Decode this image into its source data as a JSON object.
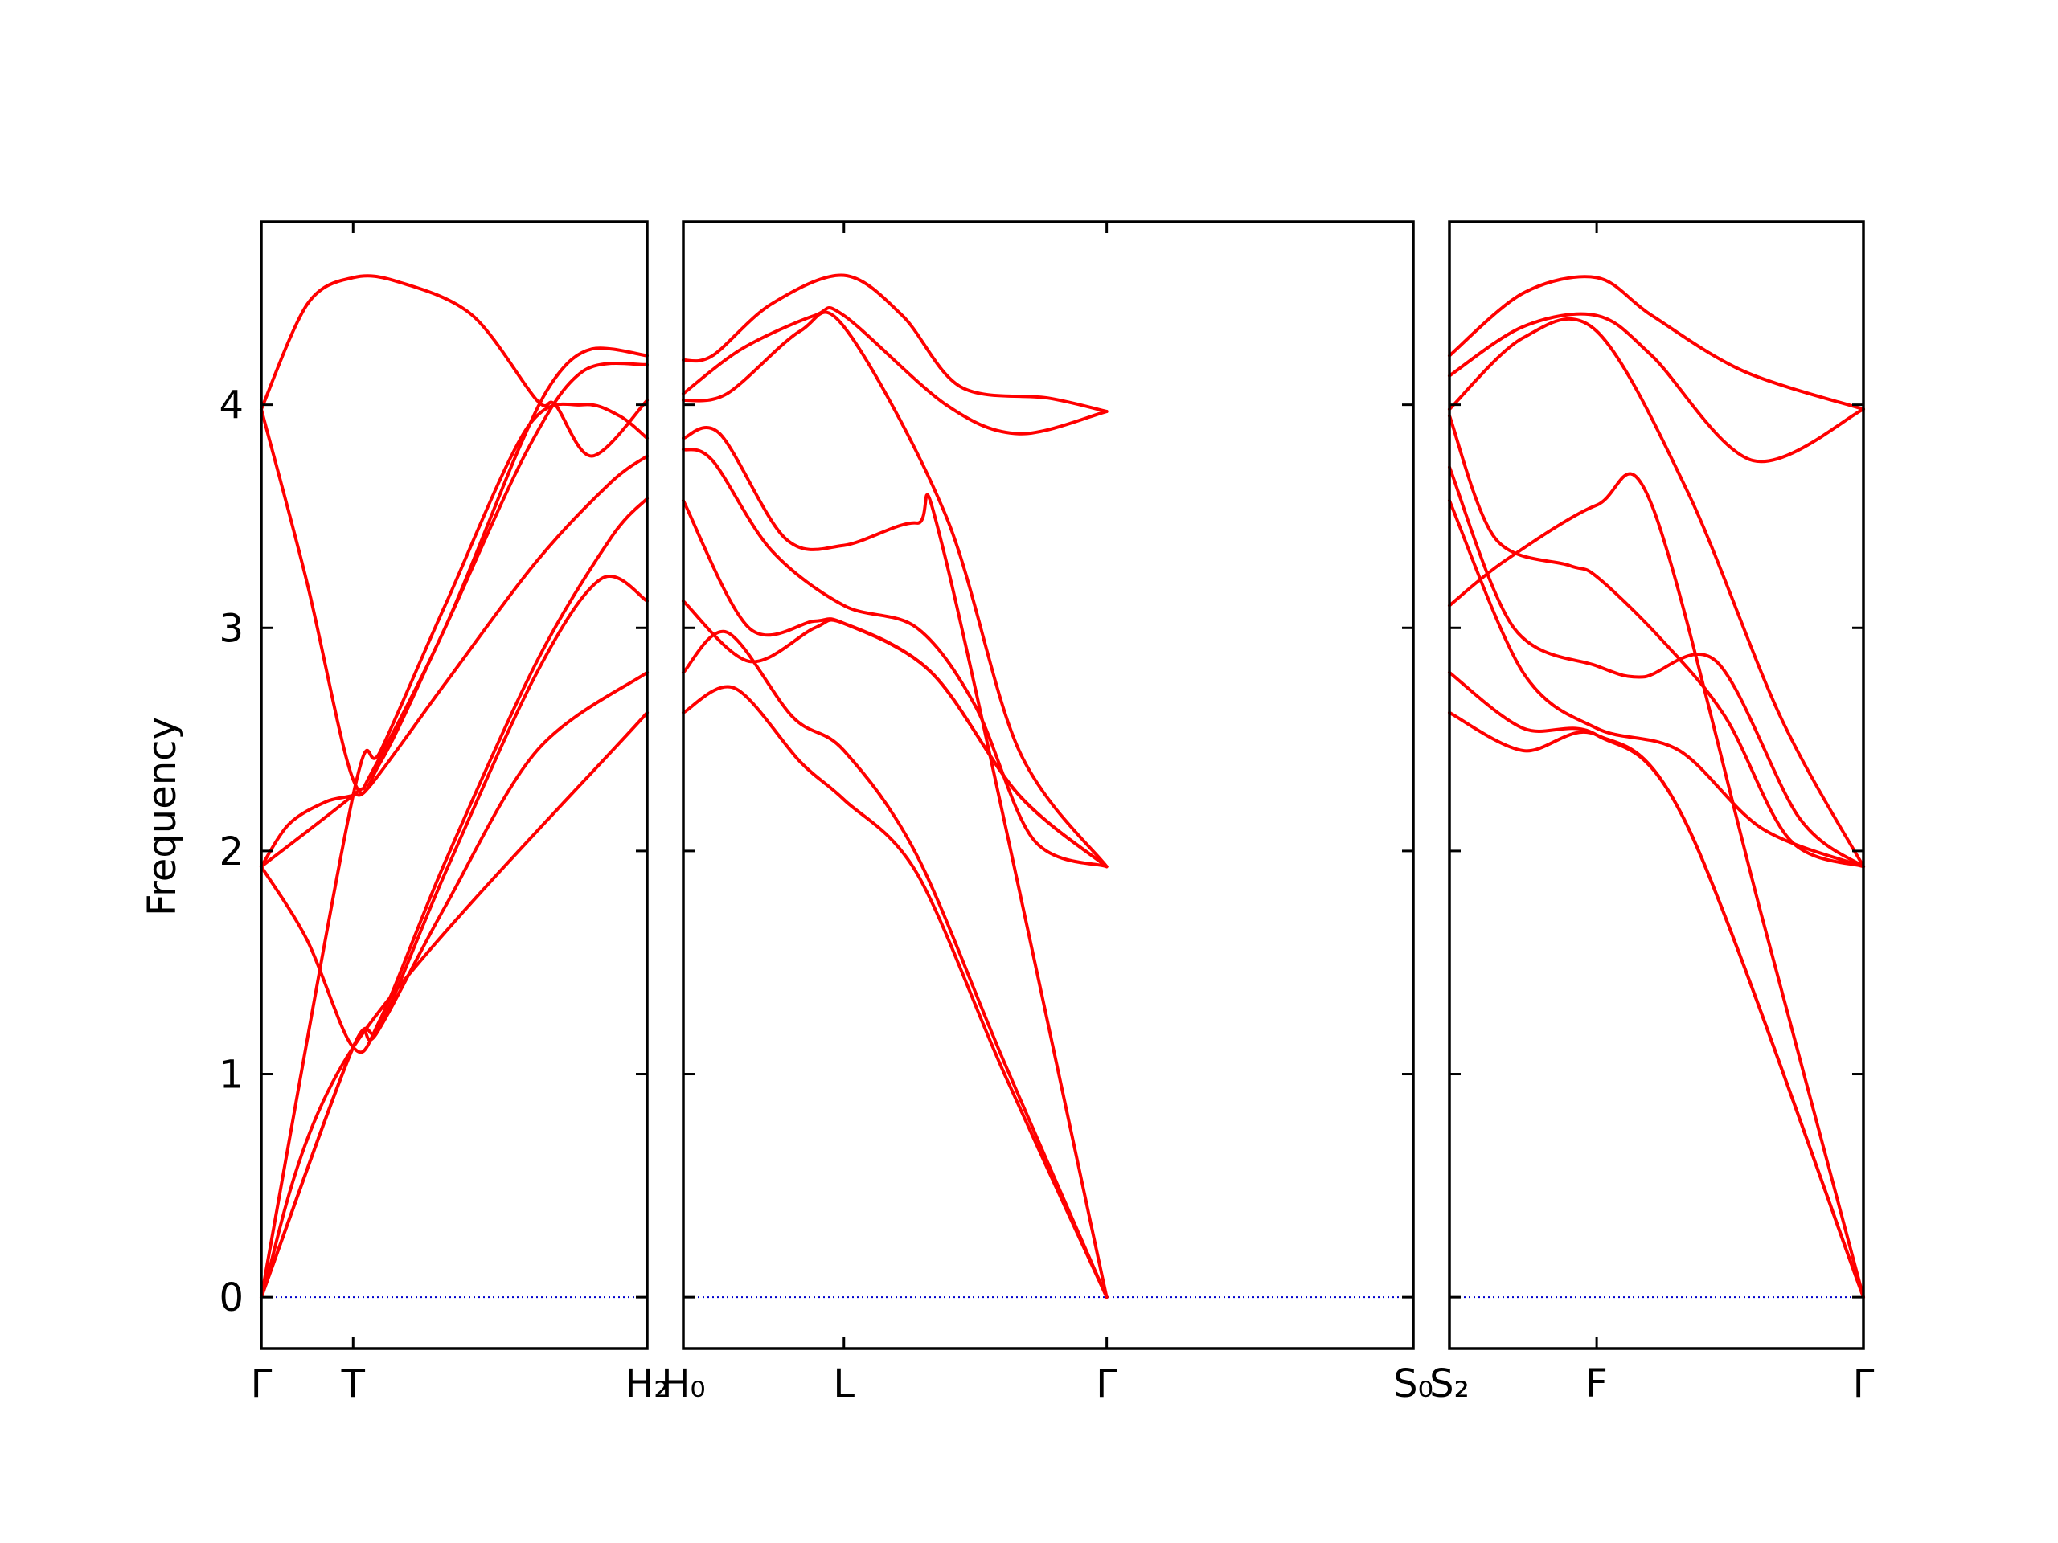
{
  "chart_data": {
    "type": "line",
    "ylabel": "Frequency",
    "ylim": [
      -0.23,
      4.82
    ],
    "yticks": [
      0,
      1,
      2,
      3,
      4
    ],
    "band_color": "#ff0000",
    "zero_line_color": "#0000cc",
    "panels": [
      {
        "xticks": [
          0,
          1,
          4.2
        ],
        "xtick_labels": [
          "Γ",
          "T",
          "H₂"
        ],
        "xlim": [
          0,
          4.2
        ],
        "bands": [
          {
            "x": [
              0,
              1,
              4.2
            ],
            "y": [
              0.0,
              1.12,
              2.62
            ]
          },
          {
            "x": [
              0,
              1,
              1.25,
              2,
              3,
              4.2
            ],
            "y": [
              0.0,
              1.12,
              1.18,
              1.75,
              2.45,
              2.8
            ]
          },
          {
            "x": [
              0,
              1,
              1.3,
              2,
              3,
              3.7,
              4.2
            ],
            "y": [
              0.0,
              1.12,
              1.22,
              1.9,
              2.8,
              3.22,
              3.12
            ]
          },
          {
            "x": [
              0,
              0.5,
              1,
              1.3,
              2,
              3,
              3.8,
              4.2
            ],
            "y": [
              1.93,
              1.6,
              1.12,
              1.25,
              1.95,
              2.85,
              3.4,
              3.58
            ]
          },
          {
            "x": [
              0,
              0.3,
              0.7,
              1,
              1.2,
              2,
              3,
              3.8,
              4.2
            ],
            "y": [
              1.93,
              2.12,
              2.22,
              2.25,
              2.3,
              2.75,
              3.3,
              3.65,
              3.77
            ]
          },
          {
            "x": [
              0,
              0.5,
              1,
              1.3,
              2,
              2.9,
              3.5,
              4.2
            ],
            "y": [
              3.98,
              3.2,
              2.32,
              2.4,
              3.0,
              3.8,
              4.15,
              4.18
            ]
          },
          {
            "x": [
              0,
              1,
              1.3,
              2,
              2.9,
              3.5,
              3.9,
              4.2
            ],
            "y": [
              0.0,
              2.25,
              2.45,
              3.1,
              3.9,
              4.0,
              3.95,
              3.85
            ]
          },
          {
            "x": [
              0,
              0.5,
              1,
              1.5,
              2.3,
              3.0,
              3.2,
              3.6,
              4.2
            ],
            "y": [
              3.98,
              4.45,
              4.57,
              4.55,
              4.4,
              4.02,
              4.0,
              3.77,
              4.02
            ]
          },
          {
            "x": [
              0,
              1,
              1.2,
              2,
              2.8,
              3.2,
              3.6,
              4.2
            ],
            "y": [
              1.93,
              2.25,
              2.35,
              3.0,
              3.8,
              4.12,
              4.25,
              4.22
            ]
          }
        ]
      },
      {
        "xticks": [
          0,
          1.1,
          2.9,
          5.0
        ],
        "xtick_labels": [
          "H₀",
          "L",
          "Γ",
          "S₀"
        ],
        "xlim": [
          0,
          5.0
        ],
        "bands": [
          {
            "x": [
              0,
              0.35,
              0.8,
              1.1,
              1.6,
              2.2,
              2.9
            ],
            "y": [
              2.62,
              2.73,
              2.4,
              2.23,
              1.9,
              1.0,
              0.0
            ]
          },
          {
            "x": [
              0,
              0.3,
              0.75,
              1.1,
              1.6,
              2.2,
              2.9
            ],
            "y": [
              2.8,
              2.98,
              2.6,
              2.45,
              1.98,
              1.05,
              0.0
            ]
          },
          {
            "x": [
              0,
              0.45,
              0.9,
              1.1,
              1.7,
              2.3,
              2.9
            ],
            "y": [
              3.12,
              2.85,
              3.0,
              3.02,
              2.8,
              2.25,
              1.93
            ]
          },
          {
            "x": [
              0,
              0.45,
              0.9,
              1.1,
              1.7,
              2.3,
              2.9
            ],
            "y": [
              3.57,
              3.0,
              3.03,
              3.02,
              2.8,
              2.25,
              1.93
            ]
          },
          {
            "x": [
              0,
              0.2,
              0.6,
              1.1,
              1.6,
              2.0,
              2.4,
              2.9
            ],
            "y": [
              3.8,
              3.75,
              3.35,
              3.1,
              3.0,
              2.65,
              2.05,
              1.93
            ]
          },
          {
            "x": [
              0,
              0.25,
              0.7,
              1.1,
              1.6,
              1.8,
              2.9
            ],
            "y": [
              3.85,
              3.87,
              3.4,
              3.37,
              3.47,
              3.3,
              0.0
            ]
          },
          {
            "x": [
              0,
              0.3,
              0.8,
              1.1,
              1.8,
              2.3,
              2.9
            ],
            "y": [
              4.02,
              4.05,
              4.33,
              4.35,
              3.5,
              2.45,
              1.93
            ]
          },
          {
            "x": [
              0,
              0.4,
              0.9,
              1.1,
              1.8,
              2.3,
              2.9
            ],
            "y": [
              4.05,
              4.25,
              4.4,
              4.4,
              4.0,
              3.87,
              3.97
            ]
          },
          {
            "x": [
              0,
              0.2,
              0.6,
              1.1,
              1.5,
              1.9,
              2.5,
              2.9
            ],
            "y": [
              4.2,
              4.22,
              4.45,
              4.58,
              4.4,
              4.08,
              4.03,
              3.97
            ]
          }
        ]
      },
      {
        "xticks": [
          0,
          1.6,
          4.5
        ],
        "xtick_labels": [
          "S₂",
          "F",
          "Γ"
        ],
        "xlim": [
          0,
          4.5
        ],
        "bands": [
          {
            "x": [
              0,
              0.8,
              1.6,
              2.6,
              4.5
            ],
            "y": [
              2.62,
              2.45,
              2.52,
              2.1,
              0.0
            ]
          },
          {
            "x": [
              0,
              0.8,
              1.6,
              2.6,
              4.5
            ],
            "y": [
              2.8,
              2.55,
              2.52,
              2.1,
              0.0
            ]
          },
          {
            "x": [
              0,
              0.6,
              1.6,
              2.2,
              3.4,
              4.5
            ],
            "y": [
              3.1,
              3.3,
              3.55,
              3.55,
              1.7,
              0.0
            ]
          },
          {
            "x": [
              0,
              0.8,
              1.6,
              2.5,
              3.4,
              4.5
            ],
            "y": [
              3.57,
              2.8,
              2.55,
              2.45,
              2.1,
              1.93
            ]
          },
          {
            "x": [
              0,
              0.5,
              1.3,
              1.6,
              2.3,
              3.0,
              3.7,
              4.5
            ],
            "y": [
              3.95,
              3.4,
              3.28,
              3.23,
              2.95,
              2.6,
              2.05,
              1.93
            ]
          },
          {
            "x": [
              0,
              0.7,
              1.6,
              2.1,
              2.9,
              3.8,
              4.5
            ],
            "y": [
              3.72,
              3.0,
              2.83,
              2.78,
              2.85,
              2.15,
              1.93
            ]
          },
          {
            "x": [
              0,
              0.8,
              1.6,
              2.6,
              3.6,
              4.5
            ],
            "y": [
              3.98,
              4.3,
              4.33,
              3.6,
              2.6,
              1.93
            ]
          },
          {
            "x": [
              0,
              0.8,
              1.6,
              2.2,
              3.3,
              4.5
            ],
            "y": [
              4.13,
              4.35,
              4.4,
              4.22,
              3.75,
              3.98
            ]
          },
          {
            "x": [
              0,
              0.8,
              1.6,
              2.2,
              3.2,
              4.5
            ],
            "y": [
              4.22,
              4.5,
              4.57,
              4.4,
              4.15,
              3.98
            ]
          }
        ]
      }
    ]
  }
}
